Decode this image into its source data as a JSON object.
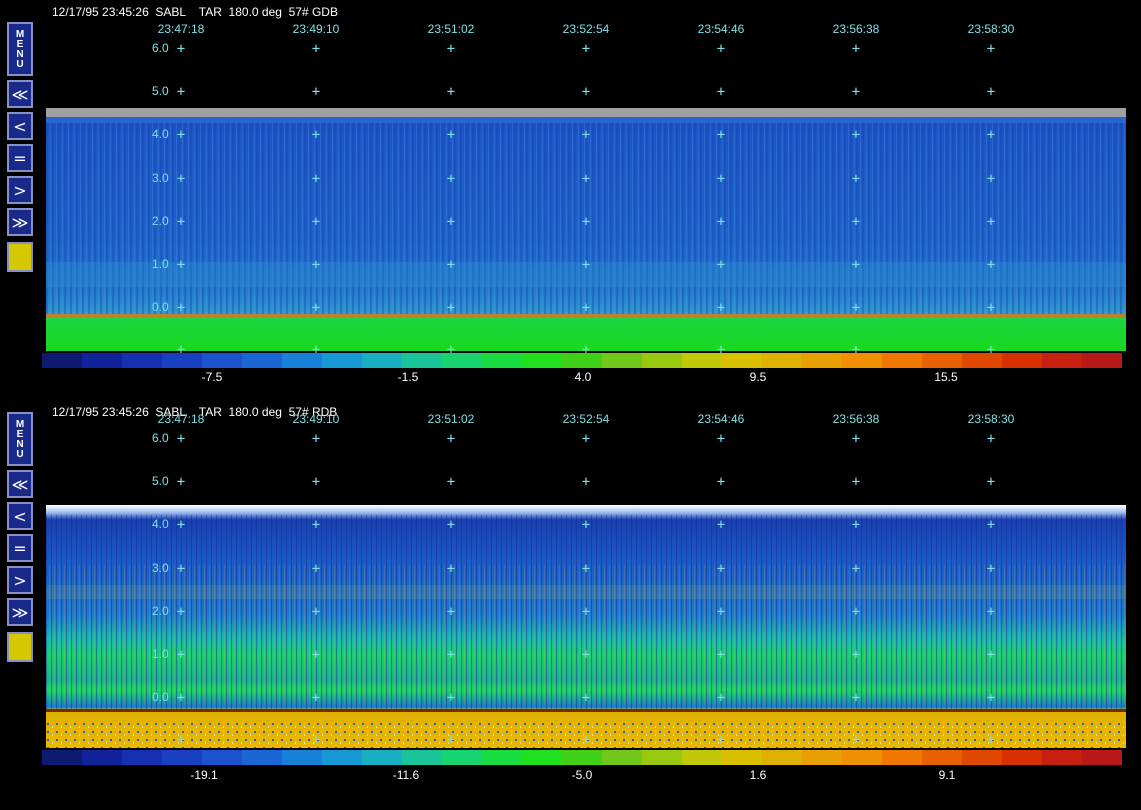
{
  "panels": [
    {
      "id": "gdb",
      "header": "12/17/95 23:45:26  SABL    TAR  180.0 deg  57# GDB",
      "times": [
        "23:47:18",
        "23:49:10",
        "23:51:02",
        "23:52:54",
        "23:54:46",
        "23:56:38",
        "23:58:30"
      ],
      "altitudes": [
        "6.0",
        "5.0",
        "4.0",
        "3.0",
        "2.0",
        "1.0",
        "0.0"
      ],
      "colorbar_labels": [
        "-7.5",
        "-1.5",
        "4.0",
        "9.5",
        "15.5"
      ],
      "menu_label": "MENU"
    },
    {
      "id": "rdb",
      "header": "12/17/95 23:45:26  SABL    TAR  180.0 deg  57# RDB",
      "times": [
        "23:47:18",
        "23:49:10",
        "23:51:02",
        "23:52:54",
        "23:54:46",
        "23:56:38",
        "23:58:30"
      ],
      "altitudes": [
        "6.0",
        "5.0",
        "4.0",
        "3.0",
        "2.0",
        "1.0",
        "0.0"
      ],
      "colorbar_labels": [
        "-19.1",
        "-11.6",
        "-5.0",
        "1.6",
        "9.1"
      ],
      "menu_label": "MENU"
    }
  ],
  "nav_buttons": {
    "rewind_fast": "≪",
    "rewind": "<",
    "equal": "=",
    "forward": ">",
    "forward_fast": "≫"
  },
  "colors": {
    "label_cyan": "#7fe0e8",
    "button_bg": "#1a2a8a",
    "button_border": "#8890c8",
    "selector_yellow": "#d6c800"
  },
  "colorbar_palette": [
    "#0d1a70",
    "#12229a",
    "#1530b0",
    "#1840c0",
    "#1c52cc",
    "#1a66d4",
    "#1880d8",
    "#1898d4",
    "#18b0c0",
    "#18c498",
    "#18d470",
    "#18dc40",
    "#20e020",
    "#40d018",
    "#70c818",
    "#98c810",
    "#c0c808",
    "#d8c000",
    "#e0b000",
    "#e8a000",
    "#f09000",
    "#f07800",
    "#e86000",
    "#e04800",
    "#d83000",
    "#c82010",
    "#b81818"
  ]
}
